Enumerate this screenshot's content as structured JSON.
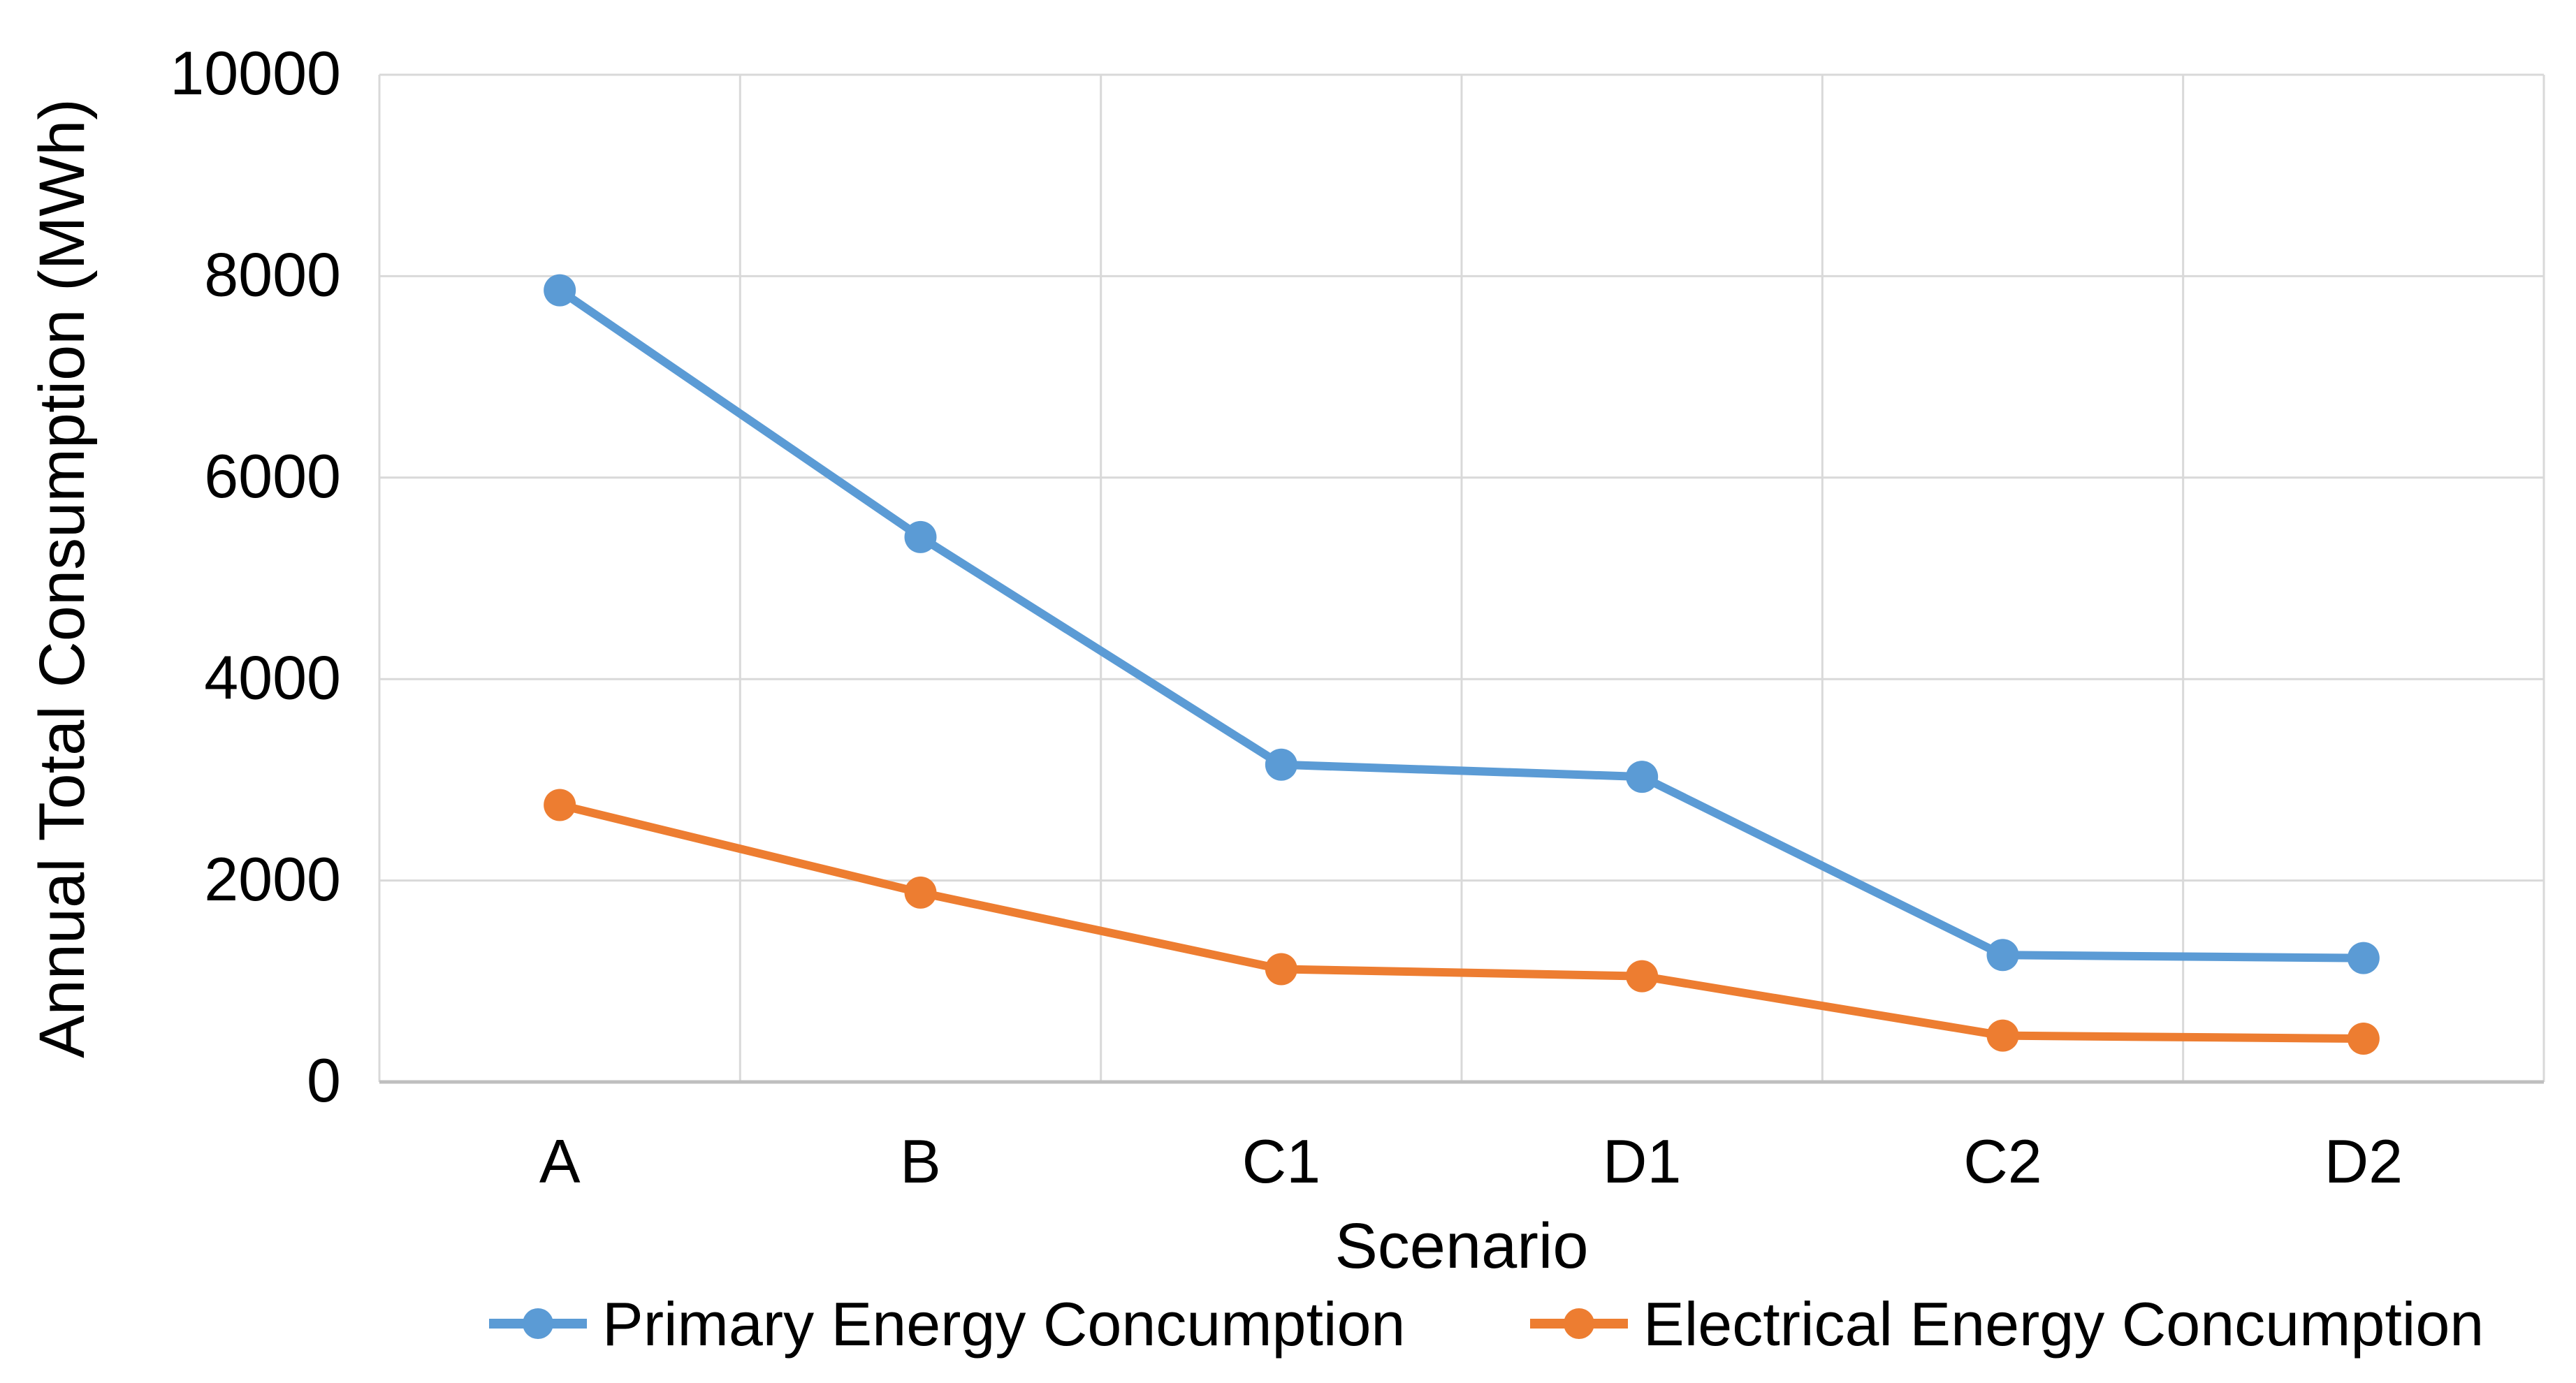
{
  "chart_data": {
    "type": "line",
    "title": "",
    "xlabel": "Scenario",
    "ylabel": "Annual Total Consumption (MWh)",
    "categories": [
      "A",
      "B",
      "C1",
      "D1",
      "C2",
      "D2"
    ],
    "series": [
      {
        "name": "Primary Energy Concumption",
        "color": "#5B9BD5",
        "values": [
          7860,
          5410,
          3150,
          3030,
          1260,
          1230
        ]
      },
      {
        "name": "Electrical Energy Concumption",
        "color": "#ED7D31",
        "values": [
          2750,
          1880,
          1120,
          1050,
          460,
          430
        ]
      }
    ],
    "ylim": [
      0,
      10000
    ],
    "ytick_step": 2000,
    "ytick_labels": [
      "0",
      "2000",
      "4000",
      "6000",
      "8000",
      "10000"
    ],
    "grid": true,
    "legend_position": "bottom"
  },
  "colors": {
    "background": "#FFFFFF",
    "gridline": "#D9D9D9",
    "axis_line": "#BFBFBF",
    "text": "#000000"
  }
}
